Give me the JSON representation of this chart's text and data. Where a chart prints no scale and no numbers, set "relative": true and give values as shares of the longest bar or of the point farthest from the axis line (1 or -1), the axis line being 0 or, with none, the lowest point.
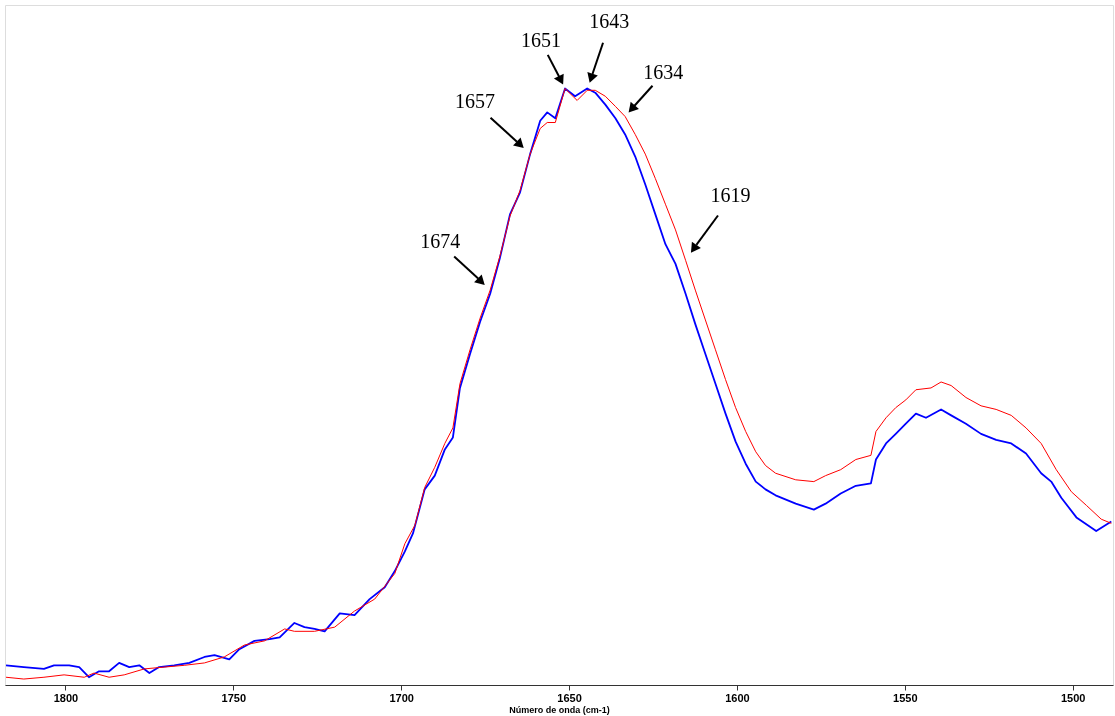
{
  "chart_data": {
    "type": "line",
    "relative": true,
    "xlabel": "Número de onda (cm-1)",
    "xlim": [
      1818,
      1488
    ],
    "xticks": [
      1800,
      1750,
      1700,
      1650,
      1600,
      1550,
      1500
    ],
    "grid": false,
    "marker": "none",
    "line_style": "solid",
    "series": [
      {
        "color": "#0000ff",
        "x": [
          1817.7,
          1812.4,
          1806.4,
          1803.4,
          1798.9,
          1795.9,
          1793.0,
          1790.0,
          1787.0,
          1784.0,
          1781.0,
          1778.0,
          1775.0,
          1772.1,
          1767.6,
          1763.1,
          1758.6,
          1755.6,
          1751.2,
          1748.2,
          1743.7,
          1739.2,
          1736.2,
          1731.8,
          1728.8,
          1725.8,
          1722.8,
          1718.3,
          1713.9,
          1709.4,
          1704.9,
          1701.9,
          1698.9,
          1696.5,
          1693.0,
          1690.0,
          1687.0,
          1684.6,
          1682.5,
          1679.5,
          1676.5,
          1673.5,
          1670.6,
          1667.6,
          1664.6,
          1661.6,
          1658.6,
          1656.5,
          1654.1,
          1651.2,
          1648.2,
          1644.6,
          1642.2,
          1639.2,
          1636.2,
          1633.3,
          1630.3,
          1627.3,
          1624.3,
          1621.3,
          1618.3,
          1615.3,
          1612.4,
          1609.4,
          1606.4,
          1603.4,
          1600.4,
          1597.4,
          1594.4,
          1591.5,
          1588.5,
          1582.5,
          1577.1,
          1573.6,
          1569.1,
          1564.6,
          1560.1,
          1558.6,
          1555.6,
          1552.7,
          1549.7,
          1546.7,
          1543.7,
          1539.2,
          1536.2,
          1531.8,
          1527.3,
          1522.8,
          1518.3,
          1513.9,
          1509.4,
          1506.4,
          1503.4,
          1498.9,
          1493.0,
          1488.5
        ],
        "values": [
          0.033,
          0.03,
          0.027,
          0.033,
          0.033,
          0.03,
          0.013,
          0.023,
          0.023,
          0.037,
          0.03,
          0.033,
          0.02,
          0.03,
          0.033,
          0.037,
          0.047,
          0.05,
          0.043,
          0.06,
          0.074,
          0.077,
          0.08,
          0.104,
          0.097,
          0.094,
          0.09,
          0.12,
          0.117,
          0.144,
          0.164,
          0.191,
          0.224,
          0.254,
          0.328,
          0.351,
          0.395,
          0.415,
          0.498,
          0.555,
          0.609,
          0.656,
          0.716,
          0.789,
          0.826,
          0.89,
          0.946,
          0.96,
          0.95,
          1.0,
          0.987,
          1.0,
          0.993,
          0.973,
          0.95,
          0.923,
          0.886,
          0.839,
          0.789,
          0.739,
          0.706,
          0.656,
          0.605,
          0.555,
          0.505,
          0.455,
          0.408,
          0.371,
          0.341,
          0.328,
          0.318,
          0.304,
          0.294,
          0.304,
          0.321,
          0.334,
          0.338,
          0.378,
          0.405,
          0.421,
          0.438,
          0.455,
          0.448,
          0.462,
          0.452,
          0.438,
          0.421,
          0.411,
          0.405,
          0.388,
          0.355,
          0.341,
          0.314,
          0.281,
          0.258,
          0.274
        ]
      },
      {
        "color": "#ff0000",
        "x": [
          1817.7,
          1812.4,
          1806.4,
          1800.4,
          1794.4,
          1791.5,
          1787.0,
          1782.5,
          1776.5,
          1770.6,
          1764.6,
          1758.6,
          1752.7,
          1746.7,
          1740.7,
          1734.7,
          1731.8,
          1725.8,
          1719.8,
          1713.9,
          1707.9,
          1701.9,
          1698.9,
          1695.9,
          1693.0,
          1690.0,
          1687.0,
          1684.6,
          1682.5,
          1679.5,
          1676.5,
          1673.5,
          1670.6,
          1667.6,
          1664.6,
          1661.6,
          1658.6,
          1656.5,
          1654.1,
          1651.2,
          1647.6,
          1644.6,
          1642.2,
          1639.2,
          1636.2,
          1633.3,
          1630.3,
          1627.3,
          1624.3,
          1621.3,
          1618.3,
          1615.3,
          1612.4,
          1609.4,
          1606.4,
          1603.4,
          1600.4,
          1597.4,
          1594.4,
          1591.5,
          1588.5,
          1582.5,
          1577.1,
          1573.6,
          1569.1,
          1564.6,
          1560.1,
          1558.6,
          1555.6,
          1552.7,
          1549.7,
          1546.7,
          1542.2,
          1539.2,
          1536.2,
          1531.8,
          1527.3,
          1522.8,
          1518.3,
          1513.9,
          1509.4,
          1504.9,
          1500.4,
          1495.9,
          1491.5,
          1488.5
        ],
        "values": [
          0.013,
          0.01,
          0.013,
          0.017,
          0.013,
          0.02,
          0.013,
          0.017,
          0.027,
          0.03,
          0.033,
          0.037,
          0.047,
          0.067,
          0.074,
          0.094,
          0.09,
          0.09,
          0.097,
          0.124,
          0.144,
          0.187,
          0.237,
          0.268,
          0.331,
          0.365,
          0.405,
          0.431,
          0.505,
          0.562,
          0.615,
          0.662,
          0.719,
          0.786,
          0.829,
          0.89,
          0.933,
          0.943,
          0.943,
          1.0,
          0.98,
          0.997,
          0.997,
          0.987,
          0.97,
          0.953,
          0.923,
          0.89,
          0.849,
          0.806,
          0.763,
          0.712,
          0.662,
          0.612,
          0.562,
          0.512,
          0.465,
          0.425,
          0.391,
          0.368,
          0.355,
          0.344,
          0.341,
          0.351,
          0.361,
          0.378,
          0.385,
          0.425,
          0.448,
          0.465,
          0.478,
          0.495,
          0.498,
          0.508,
          0.502,
          0.482,
          0.468,
          0.462,
          0.452,
          0.431,
          0.405,
          0.361,
          0.324,
          0.301,
          0.278,
          0.271
        ]
      }
    ],
    "annotations": [
      {
        "text": "1674",
        "x": 1673.5,
        "y": 0.662
      },
      {
        "text": "1657",
        "x": 1661.6,
        "y": 0.89
      },
      {
        "text": "1651",
        "x": 1651.2,
        "y": 1.0
      },
      {
        "text": "1643",
        "x": 1644.6,
        "y": 0.997
      },
      {
        "text": "1634",
        "x": 1633.3,
        "y": 0.953
      },
      {
        "text": "1619",
        "x": 1615.3,
        "y": 0.712
      }
    ]
  }
}
